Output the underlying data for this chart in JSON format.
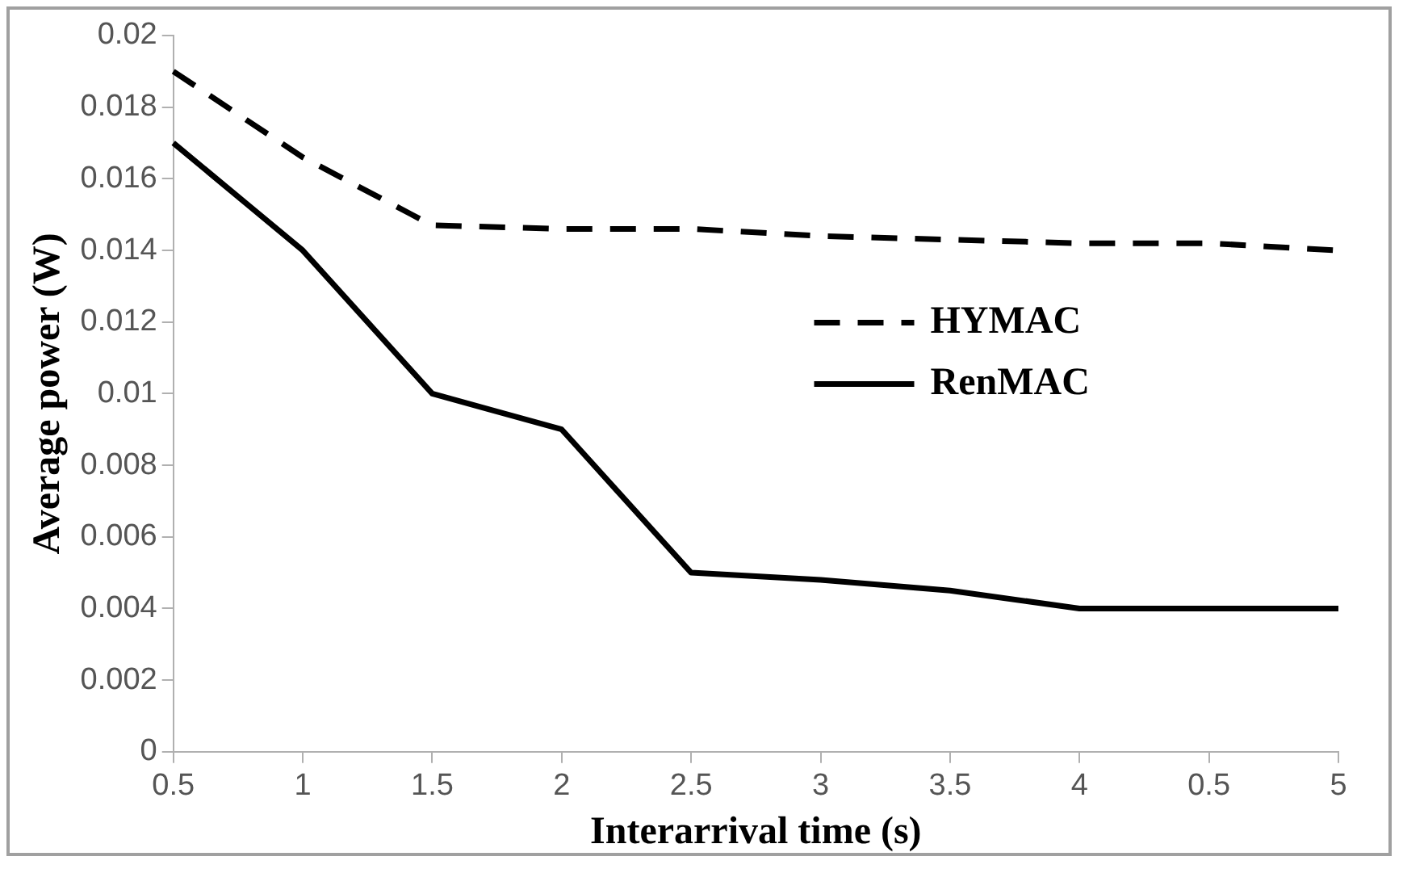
{
  "chart_data": {
    "type": "line",
    "xlabel": "Interarrival time (s)",
    "ylabel": "Average power (W)",
    "categories": [
      "0.5",
      "1",
      "1.5",
      "2",
      "2.5",
      "3",
      "3.5",
      "4",
      "0.5",
      "5"
    ],
    "series": [
      {
        "name": "HYMAC",
        "color": "#000000",
        "line_style": "dashed",
        "values": [
          0.019,
          0.0166,
          0.0147,
          0.0146,
          0.0146,
          0.0144,
          0.0143,
          0.0142,
          0.0142,
          0.014
        ]
      },
      {
        "name": "RenMAC",
        "color": "#000000",
        "line_style": "solid",
        "values": [
          0.017,
          0.014,
          0.01,
          0.009,
          0.005,
          0.0048,
          0.0045,
          0.004,
          0.004,
          0.004
        ]
      }
    ],
    "ylim": [
      0,
      0.02
    ],
    "yticks": [
      0,
      0.002,
      0.004,
      0.006,
      0.008,
      0.01,
      0.012,
      0.014,
      0.016,
      0.018,
      0.02
    ],
    "grid": false,
    "legend": "right",
    "marker": "none"
  }
}
